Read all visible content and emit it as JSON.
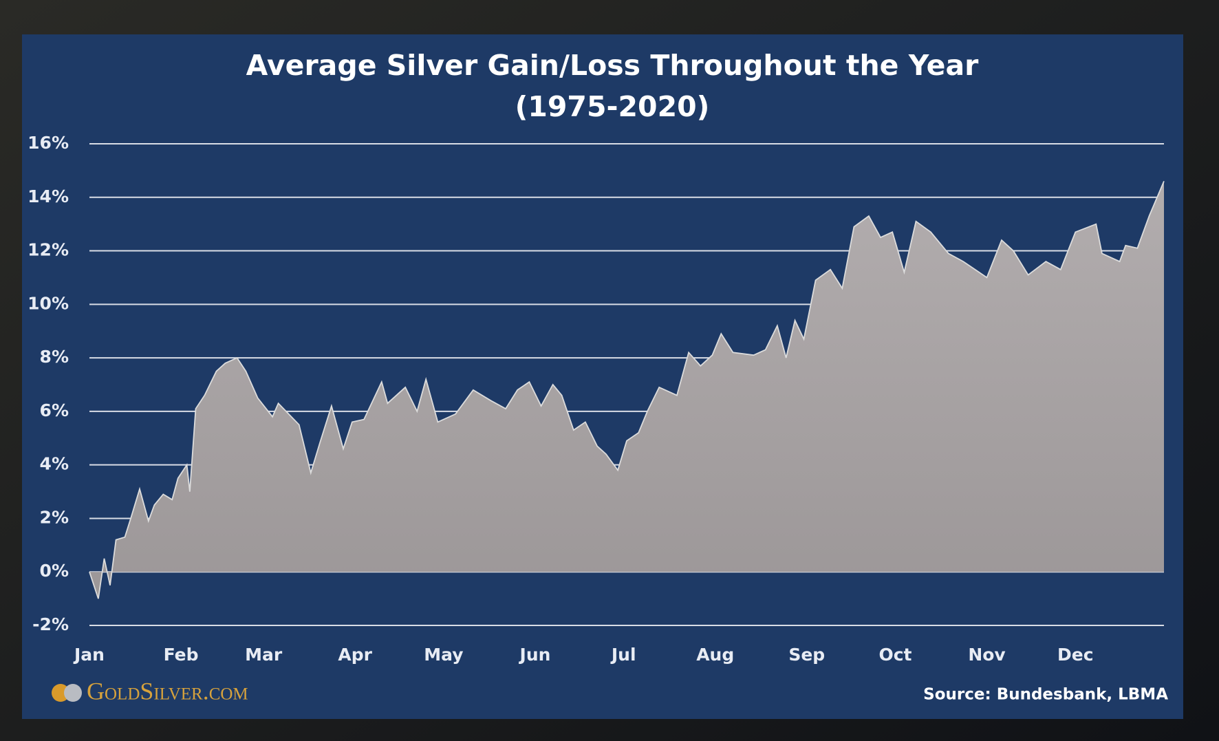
{
  "chart_data": {
    "type": "area",
    "title": "Average Silver Gain/Loss Throughout the Year",
    "subtitle": "(1975-2020)",
    "source": "Source: Bundesbank, LBMA",
    "brand": "GoldSilver.com",
    "color": "#aaa5a6",
    "line_color": "#dcdcdc",
    "grid": true,
    "xlim": [
      0,
      364
    ],
    "xticks": [
      {
        "value": 0,
        "label": "Jan"
      },
      {
        "value": 31,
        "label": "Feb"
      },
      {
        "value": 59,
        "label": "Mar"
      },
      {
        "value": 90,
        "label": "Apr"
      },
      {
        "value": 120,
        "label": "May"
      },
      {
        "value": 151,
        "label": "Jun"
      },
      {
        "value": 181,
        "label": "Jul"
      },
      {
        "value": 212,
        "label": "Aug"
      },
      {
        "value": 243,
        "label": "Sep"
      },
      {
        "value": 273,
        "label": "Oct"
      },
      {
        "value": 304,
        "label": "Nov"
      },
      {
        "value": 334,
        "label": "Dec"
      }
    ],
    "ylim": [
      -2,
      16
    ],
    "yticks": [
      {
        "value": -2,
        "label": "-2%"
      },
      {
        "value": 0,
        "label": "0%"
      },
      {
        "value": 2,
        "label": "2%"
      },
      {
        "value": 4,
        "label": "4%"
      },
      {
        "value": 6,
        "label": "6%"
      },
      {
        "value": 8,
        "label": "8%"
      },
      {
        "value": 10,
        "label": "10%"
      },
      {
        "value": 12,
        "label": "12%"
      },
      {
        "value": 14,
        "label": "14%"
      },
      {
        "value": 16,
        "label": "16%"
      }
    ],
    "x": [
      0,
      3,
      5,
      7,
      9,
      12,
      14,
      17,
      20,
      22,
      25,
      28,
      30,
      33,
      34,
      36,
      39,
      43,
      46,
      50,
      53,
      57,
      62,
      64,
      71,
      75,
      78,
      82,
      86,
      89,
      93,
      99,
      101,
      107,
      111,
      114,
      118,
      124,
      130,
      136,
      141,
      145,
      149,
      153,
      157,
      160,
      164,
      168,
      172,
      175,
      179,
      182,
      186,
      189,
      193,
      199,
      203,
      207,
      211,
      214,
      218,
      225,
      229,
      233,
      236,
      239,
      242,
      246,
      251,
      255,
      259,
      264,
      268,
      272,
      276,
      280,
      285,
      291,
      296,
      300,
      304,
      309,
      313,
      318,
      324,
      329,
      334,
      341,
      343,
      349,
      351,
      355,
      359,
      364
    ],
    "values": [
      0,
      -1.0,
      0.5,
      -0.5,
      1.2,
      1.3,
      2.0,
      3.1,
      1.9,
      2.5,
      2.9,
      2.7,
      3.5,
      4.0,
      3.0,
      6.1,
      6.6,
      7.5,
      7.8,
      8.0,
      7.5,
      6.5,
      5.8,
      6.3,
      5.5,
      3.7,
      4.8,
      6.2,
      4.6,
      5.6,
      5.7,
      7.1,
      6.3,
      6.9,
      6.0,
      7.2,
      5.6,
      5.9,
      6.8,
      6.4,
      6.1,
      6.8,
      7.1,
      6.2,
      7.0,
      6.6,
      5.3,
      5.6,
      4.7,
      4.4,
      3.8,
      4.9,
      5.2,
      6.0,
      6.9,
      6.6,
      8.2,
      7.7,
      8.1,
      8.9,
      8.2,
      8.1,
      8.3,
      9.2,
      8.0,
      9.4,
      8.7,
      10.9,
      11.3,
      10.6,
      12.9,
      13.3,
      12.5,
      12.7,
      11.2,
      13.1,
      12.7,
      11.9,
      11.6,
      11.3,
      11.0,
      12.4,
      12.0,
      11.1,
      11.6,
      11.3,
      12.7,
      13.0,
      11.9,
      11.6,
      12.2,
      12.1,
      13.3,
      14.6
    ]
  }
}
